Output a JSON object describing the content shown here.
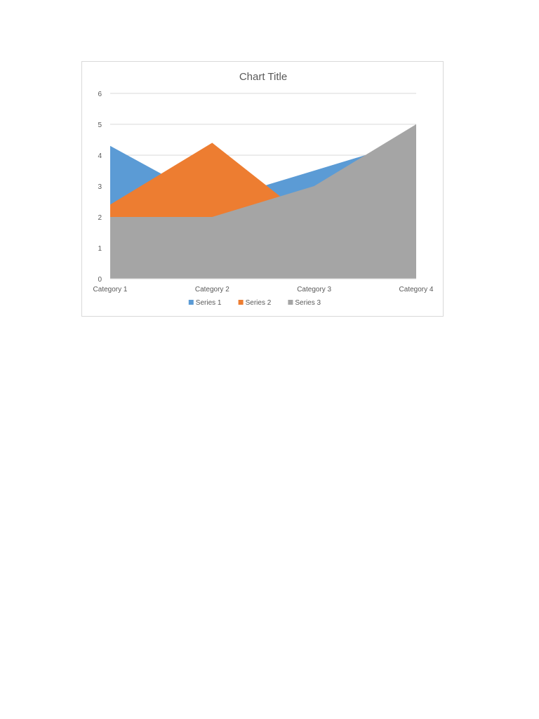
{
  "chart_data": {
    "type": "area",
    "title": "Chart Title",
    "categories": [
      "Category 1",
      "Category 2",
      "Category 3",
      "Category 4"
    ],
    "series": [
      {
        "name": "Series 1",
        "values": [
          4.3,
          2.5,
          3.5,
          4.5
        ],
        "color": "#5b9bd5"
      },
      {
        "name": "Series 2",
        "values": [
          2.4,
          4.4,
          1.8,
          2.8
        ],
        "color": "#ed7d31"
      },
      {
        "name": "Series 3",
        "values": [
          2,
          2,
          3,
          5
        ],
        "color": "#a5a5a5"
      }
    ],
    "ylim": [
      0,
      6
    ],
    "yticks": [
      "0",
      "1",
      "2",
      "3",
      "4",
      "5",
      "6"
    ],
    "grid": true,
    "legend": "bottom"
  }
}
